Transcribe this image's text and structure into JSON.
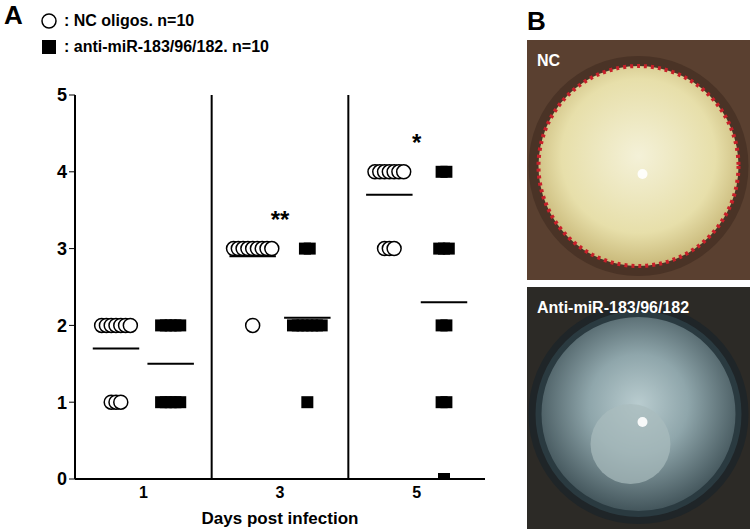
{
  "chart_data": {
    "type": "scatter",
    "panel": "A",
    "categories": [
      "1",
      "3",
      "5"
    ],
    "x_label": "Days post infection",
    "ylim": [
      0,
      5
    ],
    "yticks": [
      0,
      1,
      2,
      3,
      4,
      5
    ],
    "grid": false,
    "legend": "upper left",
    "series": [
      {
        "name": ": NC oligos. n=10",
        "color": "#000000",
        "marker": "open_circle",
        "values": [
          [
            2,
            2,
            2,
            2,
            2,
            2,
            2,
            1,
            1,
            1
          ],
          [
            3,
            3,
            3,
            3,
            3,
            3,
            3,
            3,
            3,
            2
          ],
          [
            4,
            4,
            4,
            4,
            4,
            4,
            4,
            3,
            3,
            3
          ]
        ],
        "means": [
          1.7,
          2.9,
          3.7
        ]
      },
      {
        "name": ": anti-miR-183/96/182. n=10",
        "color": "#000000",
        "marker": "square",
        "values": [
          [
            2,
            2,
            2,
            2,
            2,
            1,
            1,
            1,
            1,
            1
          ],
          [
            3,
            3,
            2,
            2,
            2,
            2,
            2,
            2,
            2,
            1
          ],
          [
            4,
            4,
            3,
            3,
            3,
            2,
            2,
            1,
            1,
            0
          ]
        ],
        "means": [
          1.5,
          2.1,
          2.3
        ]
      }
    ],
    "annotations": [
      {
        "text": "**",
        "category": "3"
      },
      {
        "text": "*",
        "category": "5"
      }
    ]
  },
  "panel_b": {
    "label": "B",
    "images": [
      {
        "label": "NC"
      },
      {
        "label": "Anti-miR-183/96/182"
      }
    ]
  }
}
